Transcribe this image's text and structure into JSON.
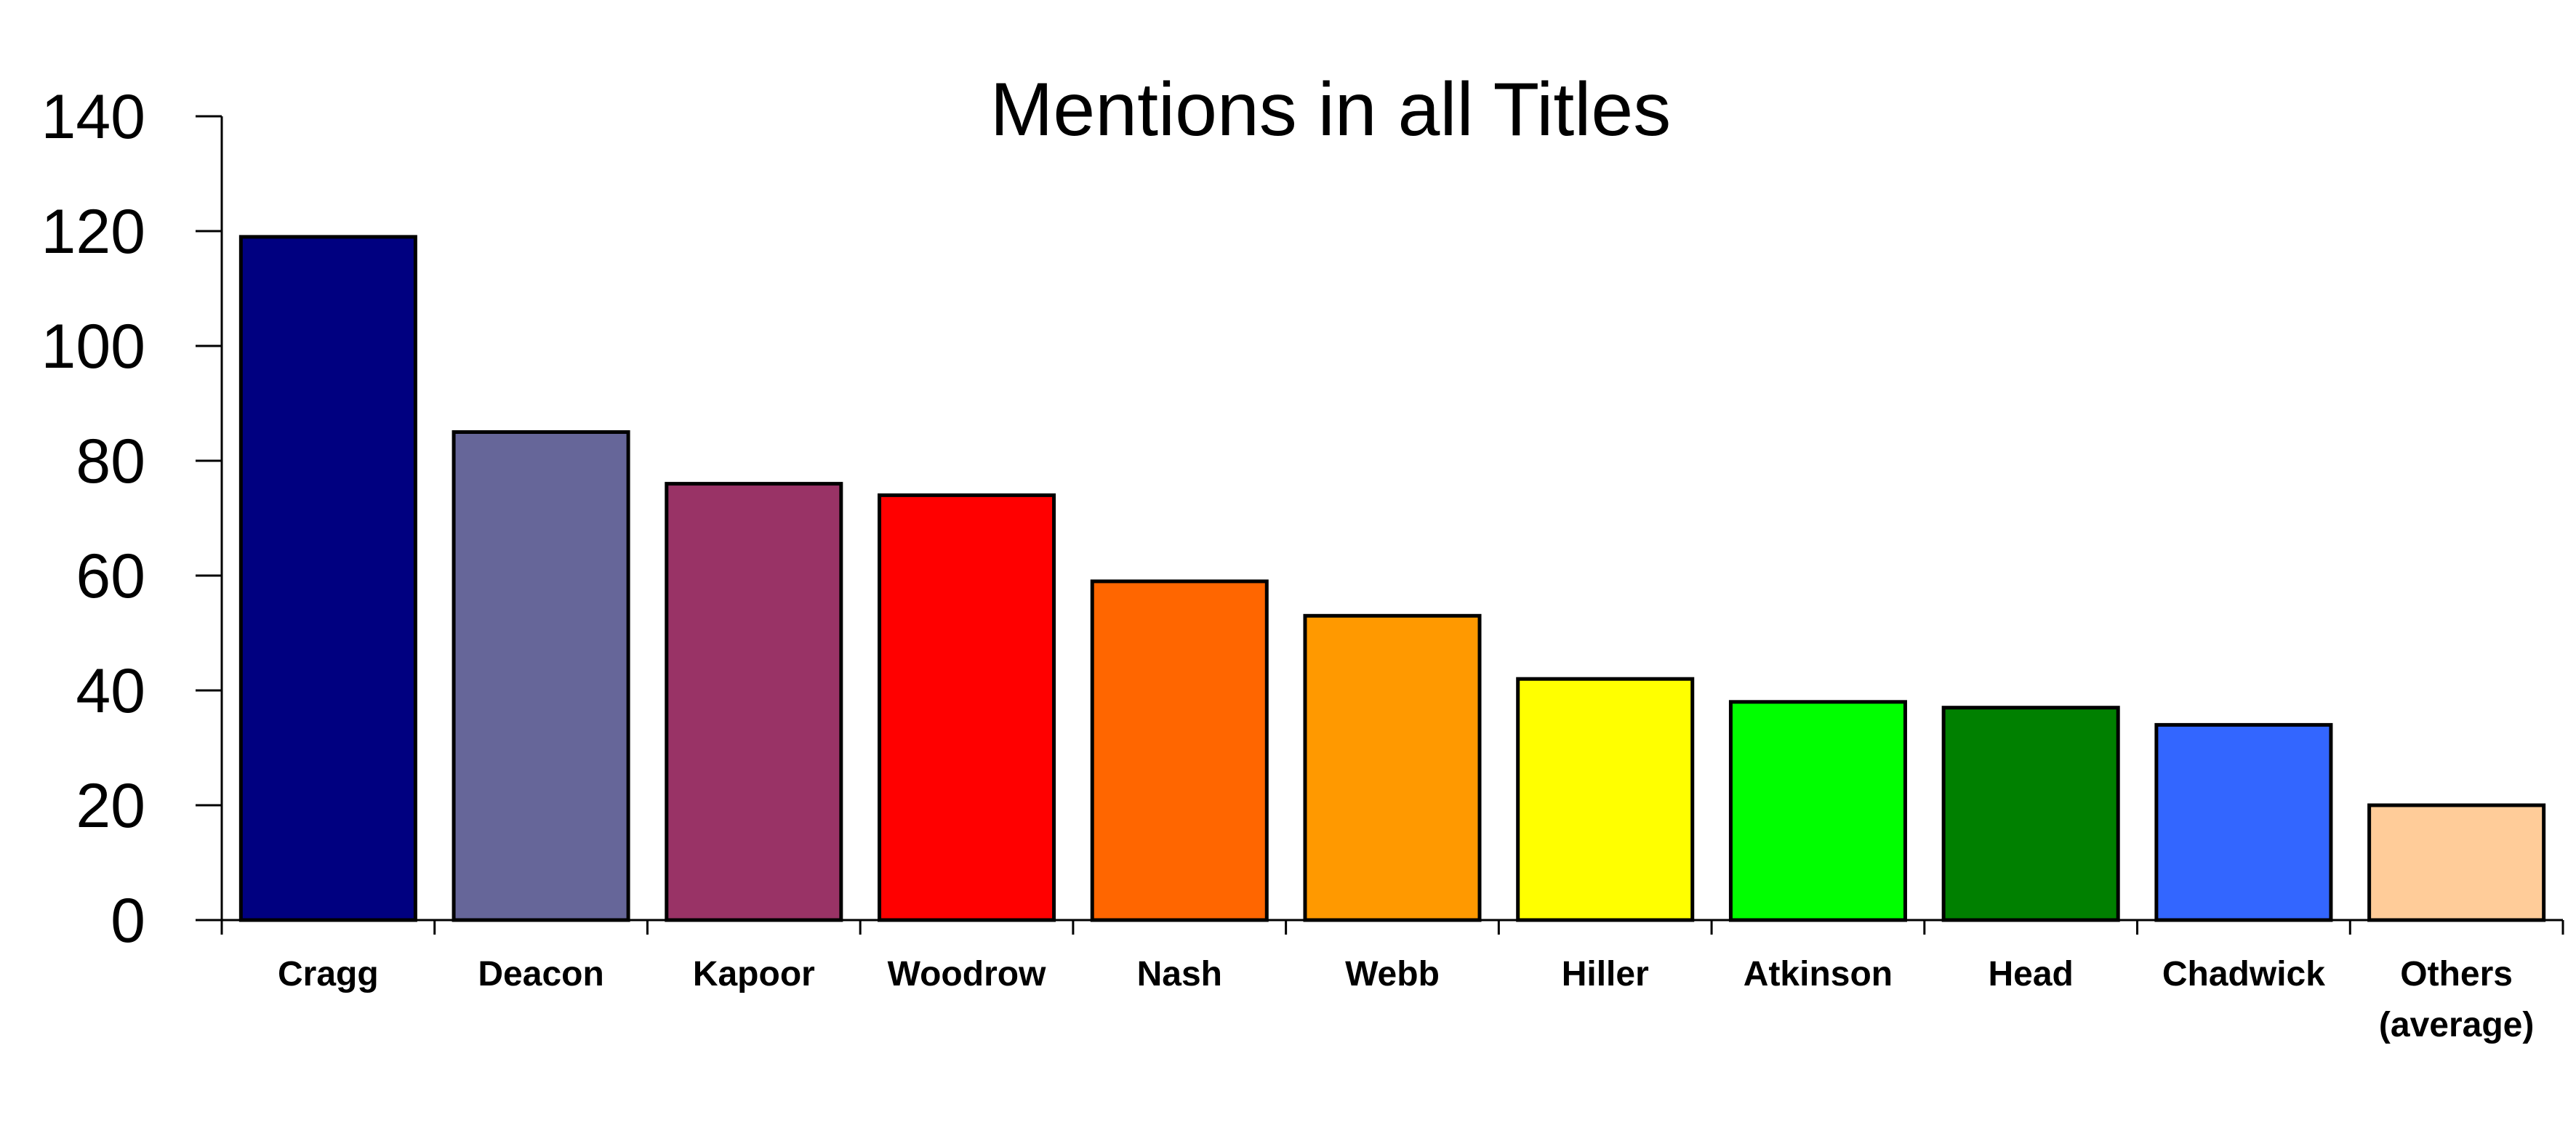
{
  "chart_data": {
    "type": "bar",
    "title": "Mentions in all Titles",
    "xlabel": "",
    "ylabel": "",
    "ylim": [
      0,
      140
    ],
    "y_ticks": [
      "0",
      "20",
      "40",
      "60",
      "80",
      "100",
      "120",
      "140"
    ],
    "grid": false,
    "legend": "none",
    "categories": [
      [
        "Cragg"
      ],
      [
        "Deacon"
      ],
      [
        "Kapoor"
      ],
      [
        "Woodrow"
      ],
      [
        "Nash"
      ],
      [
        "Webb"
      ],
      [
        "Hiller"
      ],
      [
        "Atkinson"
      ],
      [
        "Head"
      ],
      [
        "Chadwick"
      ],
      [
        "Others",
        "(average)"
      ]
    ],
    "values": [
      119,
      85,
      76,
      74,
      59,
      53,
      42,
      38,
      37,
      34,
      20
    ],
    "colors": [
      "#000080",
      "#666699",
      "#993366",
      "#ff0000",
      "#ff6600",
      "#ff9900",
      "#ffff00",
      "#00ff00",
      "#008000",
      "#3366ff",
      "#ffcc99"
    ]
  }
}
